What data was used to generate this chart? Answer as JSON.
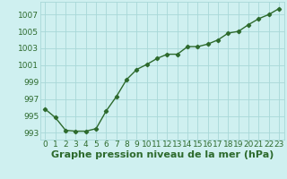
{
  "x": [
    0,
    1,
    2,
    3,
    4,
    5,
    6,
    7,
    8,
    9,
    10,
    11,
    12,
    13,
    14,
    15,
    16,
    17,
    18,
    19,
    20,
    21,
    22,
    23
  ],
  "y": [
    995.8,
    994.8,
    993.3,
    993.2,
    993.2,
    993.5,
    995.6,
    997.3,
    999.3,
    1000.5,
    1001.1,
    1001.8,
    1002.3,
    1002.3,
    1003.2,
    1003.2,
    1003.5,
    1004.0,
    1004.8,
    1005.0,
    1005.8,
    1006.5,
    1007.0,
    1007.7
  ],
  "line_color": "#2d6a2d",
  "marker": "D",
  "marker_size": 2.2,
  "bg_color": "#cff0f0",
  "grid_color": "#a8d8d8",
  "xlabel": "Graphe pression niveau de la mer (hPa)",
  "xlabel_fontsize": 8,
  "ylim": [
    992.2,
    1008.5
  ],
  "xlim": [
    -0.5,
    23.5
  ],
  "yticks": [
    993,
    995,
    997,
    999,
    1001,
    1003,
    1005,
    1007
  ],
  "xticks": [
    0,
    1,
    2,
    3,
    4,
    5,
    6,
    7,
    8,
    9,
    10,
    11,
    12,
    13,
    14,
    15,
    16,
    17,
    18,
    19,
    20,
    21,
    22,
    23
  ],
  "xtick_labels": [
    "0",
    "1",
    "2",
    "3",
    "4",
    "5",
    "6",
    "7",
    "8",
    "9",
    "10",
    "11",
    "12",
    "13",
    "14",
    "15",
    "16",
    "17",
    "18",
    "19",
    "20",
    "21",
    "22",
    "23"
  ],
  "tick_fontsize": 6.5,
  "line_width": 1.0
}
